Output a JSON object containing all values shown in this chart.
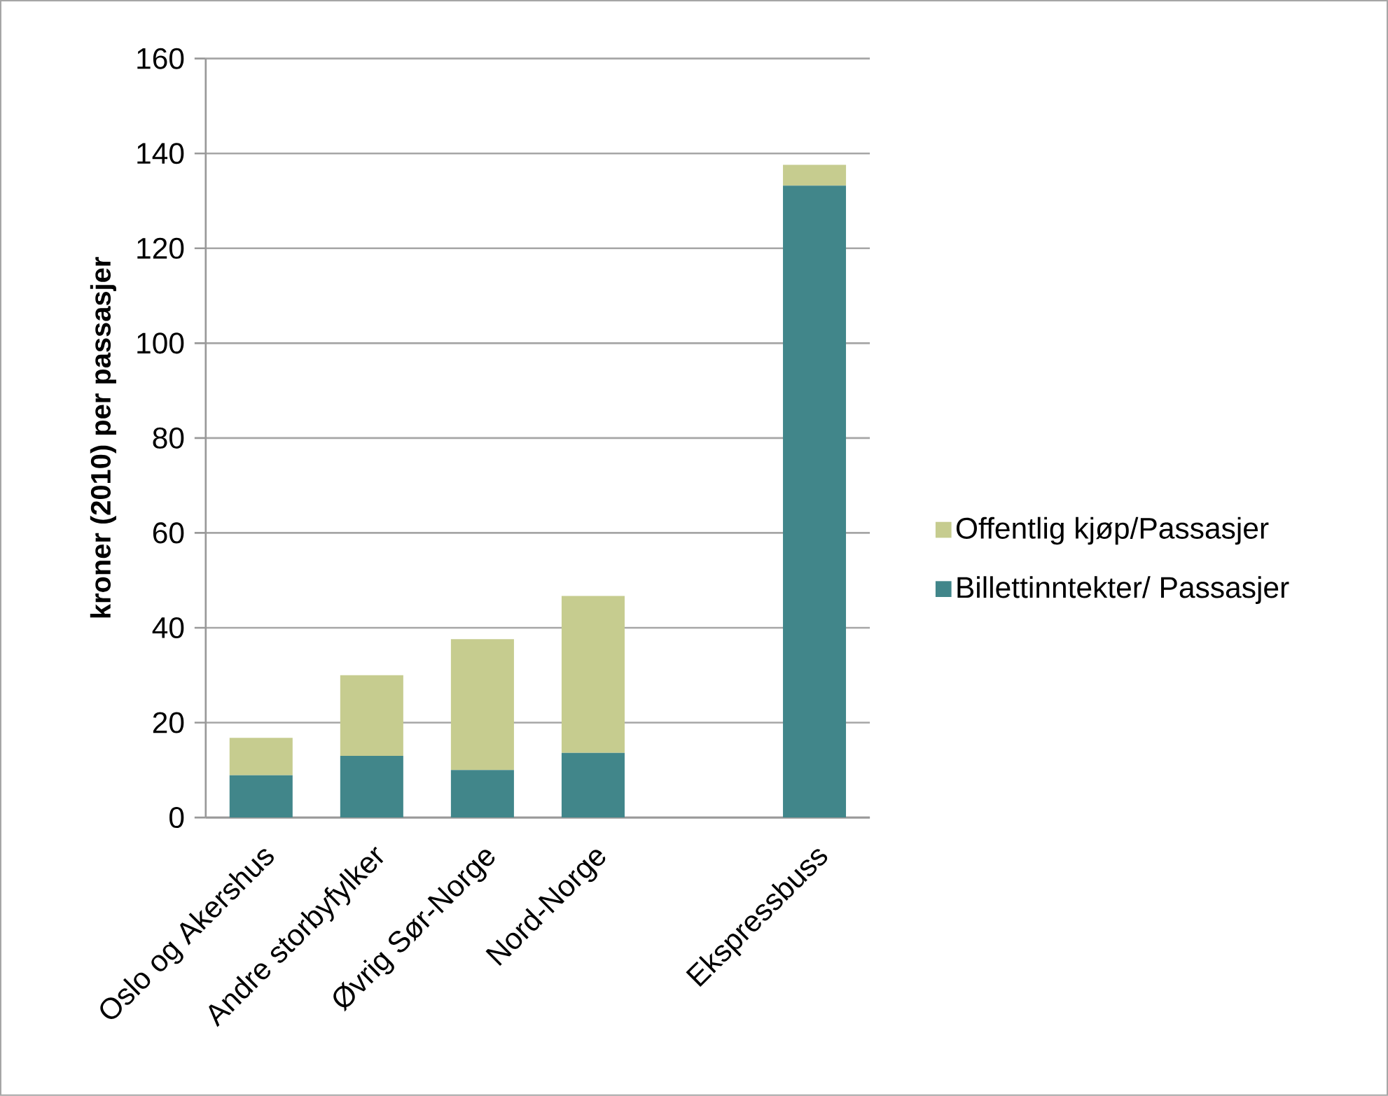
{
  "chart_data": {
    "type": "bar",
    "stacked": true,
    "ylabel": "kroner (2010)  per passasjer",
    "categories": [
      "Oslo og Akershus",
      "Andre storbyfylker",
      "Øvrig Sør-Norge",
      "Nord-Norge",
      null,
      "Ekspressbuss"
    ],
    "series": [
      {
        "name": "Billettinntekter/ Passasjer",
        "color": "#41868a",
        "values": [
          8.9,
          13.0,
          10.0,
          13.6,
          null,
          133.2
        ]
      },
      {
        "name": "Offentlig kjøp/Passasjer",
        "color": "#c6cc8f",
        "values": [
          7.9,
          17.0,
          27.6,
          33.1,
          null,
          4.4
        ]
      }
    ],
    "ylim": [
      0,
      160
    ],
    "yticks": [
      0,
      20,
      40,
      60,
      80,
      100,
      120,
      140,
      160
    ],
    "grid": "y",
    "legend": "right"
  }
}
